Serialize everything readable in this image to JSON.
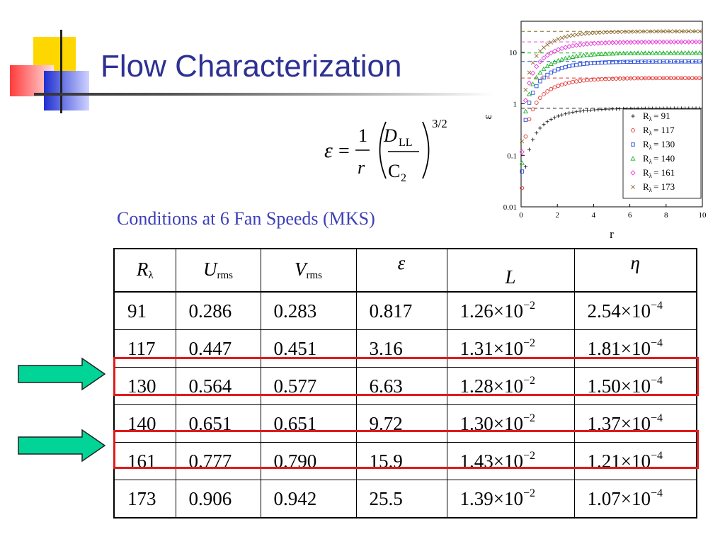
{
  "slide": {
    "title": "Flow Characterization",
    "subtitle": "Conditions at 6 Fan Speeds (MKS)"
  },
  "formula": {
    "lhs": "ε",
    "eq": "=",
    "one": "1",
    "r": "r",
    "D": "D",
    "LL": "LL",
    "C": "C",
    "two": "2",
    "exponent": "3/2"
  },
  "colors": {
    "title": "#2e3192",
    "subtitle": "#3d3fb8",
    "highlight": "#e01b1b",
    "arrow_fill": "#00d496"
  },
  "table": {
    "headers": [
      {
        "main": "R",
        "sub": "λ"
      },
      {
        "main": "U",
        "sub": "rms"
      },
      {
        "main": "V",
        "sub": "rms"
      },
      {
        "main": "ε",
        "sub": ""
      },
      {
        "main": "L",
        "sub": ""
      },
      {
        "main": "η",
        "sub": ""
      }
    ],
    "rows": [
      {
        "R": "91",
        "U": "0.286",
        "V": "0.283",
        "eps": "0.817",
        "L_m": "1.26×10",
        "L_e": "−2",
        "eta_m": "2.54×10",
        "eta_e": "−4",
        "highlight": false
      },
      {
        "R": "117",
        "U": "0.447",
        "V": "0.451",
        "eps": "3.16",
        "L_m": "1.31×10",
        "L_e": "−2",
        "eta_m": "1.81×10",
        "eta_e": "−4",
        "highlight": false
      },
      {
        "R": "130",
        "U": "0.564",
        "V": "0.577",
        "eps": "6.63",
        "L_m": "1.28×10",
        "L_e": "−2",
        "eta_m": "1.50×10",
        "eta_e": "−4",
        "highlight": true
      },
      {
        "R": "140",
        "U": "0.651",
        "V": "0.651",
        "eps": "9.72",
        "L_m": "1.30×10",
        "L_e": "−2",
        "eta_m": "1.37×10",
        "eta_e": "−4",
        "highlight": false
      },
      {
        "R": "161",
        "U": "0.777",
        "V": "0.790",
        "eps": "15.9",
        "L_m": "1.43×10",
        "L_e": "−2",
        "eta_m": "1.21×10",
        "eta_e": "−4",
        "highlight": true
      },
      {
        "R": "173",
        "U": "0.906",
        "V": "0.942",
        "eps": "25.5",
        "L_m": "1.39×10",
        "L_e": "−2",
        "eta_m": "1.07×10",
        "eta_e": "−4",
        "highlight": false
      }
    ]
  },
  "chart_data": {
    "type": "scatter",
    "xlabel": "r",
    "ylabel": "ε",
    "xlim": [
      0,
      10
    ],
    "ylim": [
      0.01,
      40
    ],
    "yscale": "log",
    "grid": false,
    "legend_position": "bottom-right",
    "x_ticks": [
      0,
      2,
      4,
      6,
      8,
      10
    ],
    "y_ticks": [
      {
        "v": 0.01,
        "label": "0.01"
      },
      {
        "v": 0.1,
        "label": "0.1"
      },
      {
        "v": 1,
        "label": "1"
      },
      {
        "v": 10,
        "label": "10"
      }
    ],
    "legend_prefix": "R",
    "legend_sub": "λ",
    "series": [
      {
        "name": "= 91",
        "marker": "plus",
        "color": "#222222",
        "plateau": 0.817
      },
      {
        "name": "= 117",
        "marker": "circle",
        "color": "#e0322d",
        "plateau": 3.16
      },
      {
        "name": "= 130",
        "marker": "square",
        "color": "#2a4fd8",
        "plateau": 6.63
      },
      {
        "name": "= 140",
        "marker": "triangle",
        "color": "#1db32a",
        "plateau": 9.72
      },
      {
        "name": "= 161",
        "marker": "diamond",
        "color": "#e63fd8",
        "plateau": 15.9
      },
      {
        "name": "= 173",
        "marker": "cross",
        "color": "#8a6a2a",
        "plateau": 25.5
      }
    ]
  }
}
